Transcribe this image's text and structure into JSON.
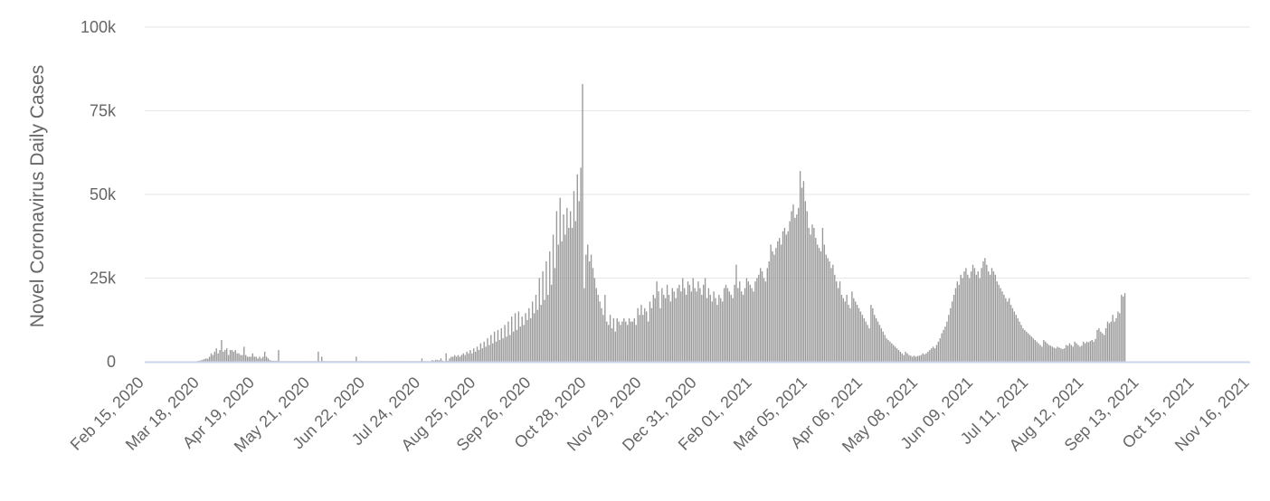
{
  "chart_data": {
    "type": "bar",
    "title": "",
    "ylabel": "Novel Coronavirus Daily Cases",
    "xlabel": "",
    "ylim": [
      0,
      100000
    ],
    "yticks": [
      {
        "value": 0,
        "label": "0"
      },
      {
        "value": 25000,
        "label": "25k"
      },
      {
        "value": 50000,
        "label": "50k"
      },
      {
        "value": 75000,
        "label": "75k"
      },
      {
        "value": 100000,
        "label": "100k"
      }
    ],
    "xticks": [
      {
        "day": 0,
        "label": "Feb 15, 2020"
      },
      {
        "day": 32,
        "label": "Mar 18, 2020"
      },
      {
        "day": 64,
        "label": "Apr 19, 2020"
      },
      {
        "day": 96,
        "label": "May 21, 2020"
      },
      {
        "day": 128,
        "label": "Jun 22, 2020"
      },
      {
        "day": 160,
        "label": "Jul 24, 2020"
      },
      {
        "day": 192,
        "label": "Aug 25, 2020"
      },
      {
        "day": 224,
        "label": "Sep 26, 2020"
      },
      {
        "day": 256,
        "label": "Oct 28, 2020"
      },
      {
        "day": 288,
        "label": "Nov 29, 2020"
      },
      {
        "day": 320,
        "label": "Dec 31, 2020"
      },
      {
        "day": 352,
        "label": "Feb 01, 2021"
      },
      {
        "day": 384,
        "label": "Mar 05, 2021"
      },
      {
        "day": 416,
        "label": "Apr 06, 2021"
      },
      {
        "day": 448,
        "label": "May 08, 2021"
      },
      {
        "day": 480,
        "label": "Jun 09, 2021"
      },
      {
        "day": 512,
        "label": "Jul 11, 2021"
      },
      {
        "day": 544,
        "label": "Aug 12, 2021"
      },
      {
        "day": 576,
        "label": "Sep 13, 2021"
      },
      {
        "day": 608,
        "label": "Oct 15, 2021"
      },
      {
        "day": 640,
        "label": "Nov 16, 2021"
      }
    ],
    "grid": true,
    "legend": "none",
    "colors": {
      "bar": "#999999",
      "grid": "#e6e6e6",
      "axis": "#ccd6eb",
      "text": "#666666"
    },
    "series": [
      {
        "name": "",
        "x_start": "Feb 15, 2020",
        "x_step": "1 day",
        "values": [
          0,
          0,
          0,
          0,
          0,
          0,
          0,
          0,
          0,
          0,
          0,
          0,
          0,
          0,
          0,
          0,
          0,
          0,
          0,
          0,
          0,
          0,
          0,
          0,
          0,
          0,
          0,
          0,
          0,
          0,
          200,
          300,
          400,
          600,
          800,
          1000,
          900,
          1500,
          2500,
          2000,
          3000,
          4000,
          2500,
          3500,
          6500,
          3000,
          3500,
          4000,
          2000,
          3500,
          3500,
          3000,
          3500,
          2500,
          2500,
          2000,
          2000,
          4500,
          2000,
          1500,
          1500,
          1500,
          2500,
          1500,
          1500,
          1000,
          1500,
          1000,
          1500,
          3000,
          1500,
          1000,
          500,
          300,
          300,
          300,
          300,
          3500,
          200,
          200,
          200,
          200,
          200,
          200,
          200,
          200,
          200,
          200,
          200,
          200,
          200,
          200,
          200,
          200,
          200,
          200,
          200,
          200,
          200,
          200,
          3000,
          200,
          1500,
          200,
          200,
          200,
          200,
          200,
          200,
          200,
          200,
          200,
          200,
          200,
          200,
          200,
          200,
          200,
          200,
          200,
          200,
          200,
          1500,
          200,
          200,
          200,
          200,
          200,
          200,
          200,
          200,
          200,
          200,
          200,
          200,
          200,
          200,
          200,
          200,
          200,
          200,
          200,
          200,
          200,
          200,
          200,
          200,
          200,
          200,
          200,
          200,
          200,
          200,
          200,
          200,
          200,
          200,
          200,
          200,
          200,
          1000,
          200,
          200,
          200,
          200,
          200,
          500,
          300,
          600,
          500,
          400,
          1000,
          300,
          200,
          2500,
          300,
          1000,
          1500,
          1500,
          2000,
          1500,
          2000,
          1500,
          2000,
          2500,
          2000,
          3000,
          2500,
          3500,
          2500,
          4000,
          3000,
          4500,
          3500,
          5500,
          4000,
          6000,
          4500,
          7000,
          5000,
          8000,
          5500,
          9000,
          6000,
          9500,
          6500,
          10000,
          7000,
          11000,
          7500,
          12000,
          8000,
          13500,
          9000,
          14500,
          9500,
          15000,
          10500,
          13500,
          11000,
          14500,
          12500,
          16000,
          13000,
          18000,
          14500,
          20000,
          15500,
          25000,
          17000,
          27000,
          18500,
          30000,
          20000,
          33000,
          23000,
          38000,
          28000,
          45000,
          35000,
          49000,
          36000,
          44000,
          38000,
          46000,
          40000,
          45000,
          40000,
          51000,
          42000,
          56000,
          48000,
          58000,
          83000,
          22000,
          32000,
          35000,
          30000,
          32000,
          28000,
          25000,
          22000,
          20000,
          18000,
          16000,
          14000,
          20000,
          12000,
          11000,
          14000,
          10000,
          13000,
          9000,
          13000,
          12000,
          11000,
          12000,
          13000,
          12000,
          11000,
          13000,
          12000,
          12000,
          13000,
          11000,
          16000,
          14000,
          17000,
          14000,
          16000,
          15000,
          12000,
          18000,
          16000,
          20000,
          19000,
          24000,
          21000,
          16000,
          22000,
          20000,
          19000,
          23000,
          20000,
          18000,
          22000,
          21000,
          19000,
          22000,
          23000,
          21000,
          25000,
          22000,
          20000,
          24000,
          23000,
          21000,
          25000,
          22000,
          21000,
          24000,
          22000,
          20000,
          23000,
          25000,
          19000,
          22000,
          20000,
          18000,
          21000,
          19000,
          17000,
          20000,
          19000,
          18000,
          22000,
          23000,
          22000,
          21000,
          20000,
          19000,
          23000,
          29000,
          22000,
          24000,
          21000,
          20000,
          22000,
          25000,
          24000,
          23000,
          22000,
          21000,
          24000,
          25000,
          26000,
          28000,
          27000,
          25000,
          24000,
          28000,
          30000,
          35000,
          33000,
          32000,
          34000,
          36000,
          37000,
          35000,
          39000,
          40000,
          38000,
          39000,
          42000,
          45000,
          47000,
          43000,
          44000,
          46000,
          57000,
          52000,
          54000,
          48000,
          45000,
          40000,
          38000,
          41000,
          40000,
          37000,
          35000,
          34000,
          33000,
          40000,
          35000,
          32000,
          31000,
          30000,
          28000,
          29000,
          26000,
          24000,
          22000,
          24000,
          20000,
          19000,
          18000,
          20000,
          17000,
          16000,
          21000,
          19000,
          18000,
          17000,
          16000,
          15000,
          14000,
          13000,
          12000,
          11000,
          10000,
          17000,
          16000,
          14000,
          13000,
          12000,
          11000,
          10000,
          9000,
          8000,
          7000,
          6500,
          6000,
          5500,
          5000,
          4500,
          4000,
          3500,
          3000,
          2500,
          2000,
          3000,
          2500,
          2000,
          1800,
          1500,
          1800,
          1500,
          1700,
          1800,
          2000,
          2500,
          2200,
          2500,
          3000,
          3500,
          4000,
          4500,
          4000,
          5000,
          6000,
          7000,
          8500,
          9500,
          10500,
          12000,
          14000,
          16000,
          18000,
          20000,
          22000,
          24000,
          23000,
          26000,
          25000,
          27000,
          28000,
          26000,
          25000,
          27000,
          29000,
          28000,
          26000,
          27000,
          25000,
          28000,
          30000,
          31000,
          29000,
          27000,
          26000,
          28000,
          27000,
          26000,
          24000,
          23000,
          22000,
          21000,
          20000,
          19000,
          18000,
          19000,
          17000,
          16000,
          15000,
          14000,
          13000,
          12000,
          11000,
          10000,
          9500,
          9000,
          8500,
          8000,
          7500,
          7000,
          6500,
          6000,
          5500,
          5000,
          4500,
          6500,
          6000,
          5500,
          5000,
          4800,
          4500,
          4200,
          4000,
          4500,
          4200,
          4000,
          3800,
          4000,
          5000,
          4800,
          5500,
          5000,
          4500,
          6000,
          5500,
          5000,
          4500,
          4800,
          6000,
          5500,
          6000,
          5800,
          6200,
          6500,
          6000,
          6800,
          9500,
          10000,
          9000,
          8500,
          8000,
          10000,
          12000,
          11500,
          12000,
          14000,
          12000,
          13000,
          15000,
          14500,
          20000,
          19500,
          20500
        ]
      }
    ]
  }
}
